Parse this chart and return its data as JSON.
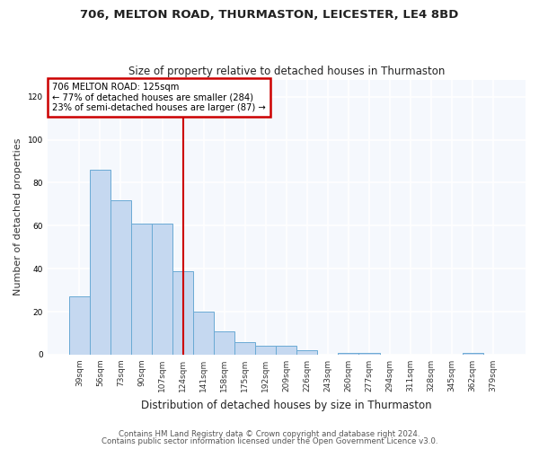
{
  "title1": "706, MELTON ROAD, THURMASTON, LEICESTER, LE4 8BD",
  "title2": "Size of property relative to detached houses in Thurmaston",
  "xlabel": "Distribution of detached houses by size in Thurmaston",
  "ylabel": "Number of detached properties",
  "categories": [
    "39sqm",
    "56sqm",
    "73sqm",
    "90sqm",
    "107sqm",
    "124sqm",
    "141sqm",
    "158sqm",
    "175sqm",
    "192sqm",
    "209sqm",
    "226sqm",
    "243sqm",
    "260sqm",
    "277sqm",
    "294sqm",
    "311sqm",
    "328sqm",
    "345sqm",
    "362sqm",
    "379sqm"
  ],
  "values": [
    27,
    86,
    72,
    61,
    61,
    39,
    20,
    11,
    6,
    4,
    4,
    2,
    0,
    1,
    1,
    0,
    0,
    0,
    0,
    1,
    0
  ],
  "bar_color": "#c5d8f0",
  "bar_edge_color": "#6aaad4",
  "annotation_text1": "706 MELTON ROAD: 125sqm",
  "annotation_text2": "← 77% of detached houses are smaller (284)",
  "annotation_text3": "23% of semi-detached houses are larger (87) →",
  "annotation_box_color": "#ffffff",
  "annotation_box_edge": "#cc0000",
  "vline_color": "#cc0000",
  "vline_x_index": 5,
  "ylim": [
    0,
    128
  ],
  "yticks": [
    0,
    20,
    40,
    60,
    80,
    100,
    120
  ],
  "footer1": "Contains HM Land Registry data © Crown copyright and database right 2024.",
  "footer2": "Contains public sector information licensed under the Open Government Licence v3.0.",
  "bg_color": "#ffffff",
  "plot_bg_color": "#f5f8fd"
}
